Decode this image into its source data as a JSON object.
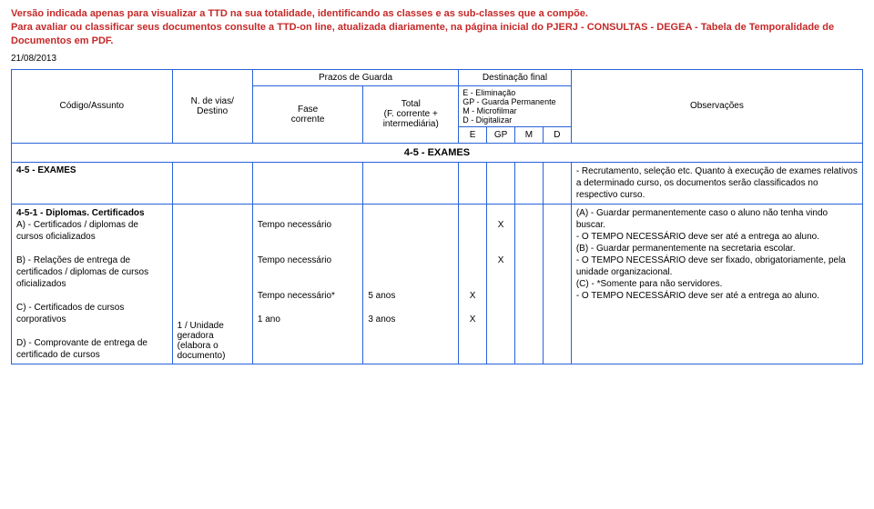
{
  "warning_line1": "Versão indicada apenas para visualizar a TTD na sua totalidade, identificando as classes e as sub-classes que a compõe.",
  "warning_line2": "Para avaliar ou classificar seus documentos consulte a TTD-on line, atualizada diariamente, na página inicial do PJERJ - CONSULTAS - DEGEA - Tabela de Temporalidade de Documentos em PDF.",
  "date": "21/08/2013",
  "headers": {
    "codigo": "Código/Assunto",
    "vias": "N. de vias/\nDestino",
    "prazos": "Prazos de Guarda",
    "fase": "Fase\ncorrente",
    "total": "Total\n(F. corrente +\nintermediária)",
    "destinacao": "Destinação final",
    "legend": "E  - Eliminação\nGP - Guarda Permanente\nM  - Microfilmar\nD  - Digitalizar",
    "E": "E",
    "GP": "GP",
    "M": "M",
    "D": "D",
    "obs": "Observações"
  },
  "section_title": "4-5 - EXAMES",
  "row_exames": {
    "codigo": "4-5 - EXAMES",
    "obs": "- Recrutamento, seleção etc. Quanto à execução de exames relativos a determinado curso, os documentos serão classificados no respectivo curso."
  },
  "row_diplomas": {
    "codigo_title": "4-5-1 - Diplomas. Certificados",
    "codigo_a": "A) - Certificados / diplomas de cursos oficializados",
    "codigo_b": "B) - Relações de entrega de certificados / diplomas de cursos oficializados",
    "codigo_c": "C) - Certificados de cursos corporativos",
    "codigo_d": "D) - Comprovante de entrega de certificado de cursos",
    "vias": "1 / Unidade geradora (elabora o documento)",
    "fase_a": "Tempo necessário",
    "fase_b": "Tempo necessário",
    "fase_c": "Tempo necessário*",
    "fase_d": "1 ano",
    "total_c": "5  anos",
    "total_d": "3  anos",
    "x": "X",
    "obs": "(A) - Guardar permanentemente caso o aluno não tenha vindo buscar.\n- O TEMPO NECESSÁRIO deve ser até a entrega ao aluno.\n(B) - Guardar permanentemente na secretaria escolar.\n- O TEMPO NECESSÁRIO deve ser fixado, obrigatoriamente, pela unidade organizacional.\n(C) - *Somente para não servidores.\n- O TEMPO NECESSÁRIO deve ser até a entrega ao aluno."
  },
  "colors": {
    "warning": "#c62828",
    "border": "#2962d9",
    "text": "#000000",
    "background": "#ffffff"
  }
}
